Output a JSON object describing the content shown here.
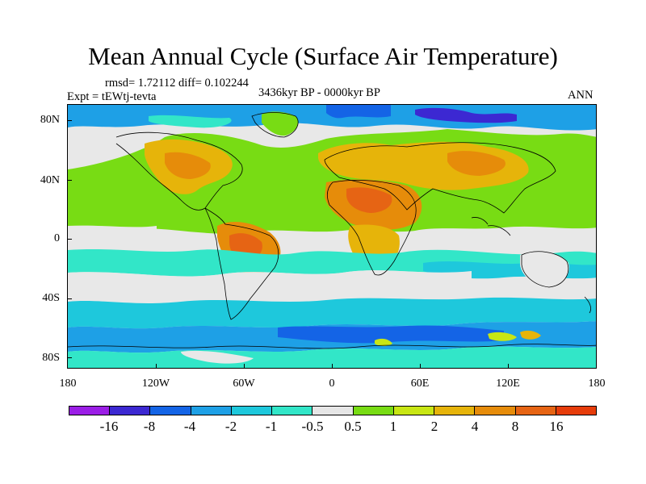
{
  "title": "Mean Annual Cycle (Surface Air Temperature)",
  "stats": "rmsd= 1.72112 diff= 0.102244",
  "experiment": "Expt = tEWtj-tevta",
  "period": "3436kyr BP - 0000kyr BP",
  "season": "ANN",
  "lat_labels": [
    "80N",
    "40N",
    "0",
    "40S",
    "80S"
  ],
  "lon_labels": [
    "180",
    "120W",
    "60W",
    "0",
    "60E",
    "120E",
    "180"
  ],
  "colorbar": {
    "labels": [
      "-16",
      "-8",
      "-4",
      "-2",
      "-1",
      "-0.5",
      "0.5",
      "1",
      "2",
      "4",
      "8",
      "16"
    ],
    "colors": [
      "#9b1ee6",
      "#3c28d2",
      "#1464e6",
      "#1ea0e6",
      "#1ec8dc",
      "#32e6c8",
      "#e6e6e6",
      "#78dc14",
      "#c8e614",
      "#e6b40a",
      "#e68c0a",
      "#e66414",
      "#e63c0a"
    ]
  }
}
